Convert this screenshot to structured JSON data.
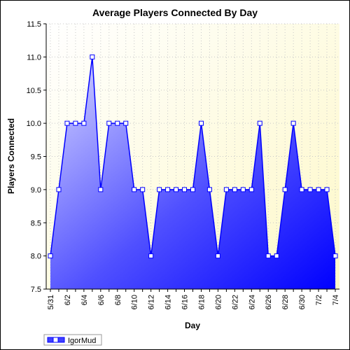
{
  "chart_data": {
    "type": "area",
    "title": "Average Players Connected By Day",
    "xlabel": "Day",
    "ylabel": "Players Connected",
    "ylim": [
      7.5,
      11.5
    ],
    "y_ticks": [
      "7.5",
      "8.0",
      "8.5",
      "9.0",
      "9.5",
      "10.0",
      "10.5",
      "11.0",
      "11.5"
    ],
    "x_tick_labels": [
      "5/31",
      "6/2",
      "6/4",
      "6/6",
      "6/8",
      "6/10",
      "6/12",
      "6/14",
      "6/16",
      "6/18",
      "6/20",
      "6/22",
      "6/24",
      "6/26",
      "6/28",
      "6/30",
      "7/2",
      "7/4"
    ],
    "grid": true,
    "legend_position": "bottom-left",
    "series": [
      {
        "name": "IgorMud",
        "color": "#0000FF",
        "x": [
          "5/31",
          "6/1",
          "6/2",
          "6/3",
          "6/4",
          "6/5",
          "6/6",
          "6/7",
          "6/8",
          "6/9",
          "6/10",
          "6/11",
          "6/12",
          "6/13",
          "6/14",
          "6/15",
          "6/16",
          "6/17",
          "6/18",
          "6/19",
          "6/20",
          "6/21",
          "6/22",
          "6/23",
          "6/24",
          "6/25",
          "6/26",
          "6/27",
          "6/28",
          "6/29",
          "6/30",
          "7/1",
          "7/2",
          "7/3",
          "7/4"
        ],
        "values": [
          8,
          9,
          10,
          10,
          10,
          11,
          9,
          10,
          10,
          10,
          9,
          9,
          8,
          9,
          9,
          9,
          9,
          9,
          10,
          9,
          8,
          9,
          9,
          9,
          9,
          10,
          8,
          8,
          9,
          10,
          9,
          9,
          9,
          9,
          8
        ]
      }
    ]
  }
}
